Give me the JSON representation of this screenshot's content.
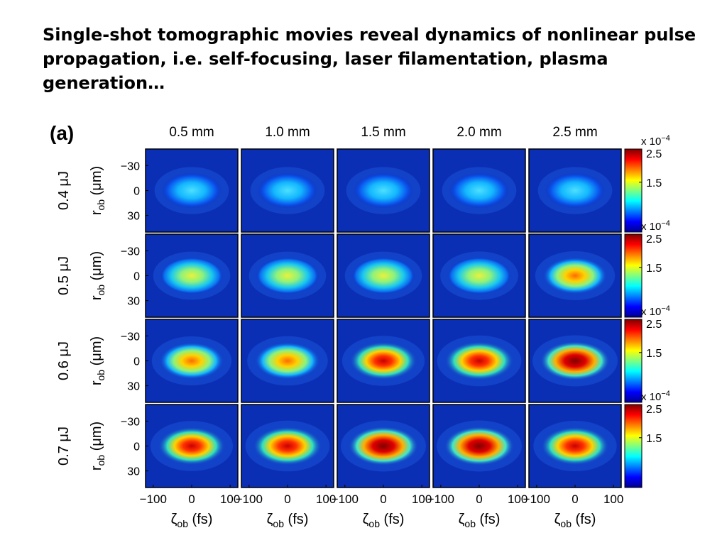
{
  "slide": {
    "title": "Single-shot tomographic movies reveal dynamics of nonlinear pulse propagation, i.e. self-focusing, laser filamentation, plasma generation…"
  },
  "figure": {
    "panel_label": "(a)",
    "columns": [
      "0.5 mm",
      "1.0 mm",
      "1.5 mm",
      "2.0 mm",
      "2.5 mm"
    ],
    "rows": [
      "0.4 μJ",
      "0.5 μJ",
      "0.6 μJ",
      "0.7 μJ"
    ],
    "y_axis_label": {
      "main": "r",
      "sub": "ob",
      "unit": " (μm)"
    },
    "x_axis_label": {
      "main": "ζ",
      "sub": "ob",
      "unit": " (fs)"
    },
    "y_ticks": [
      "−30",
      "0",
      "30"
    ],
    "x_ticks": [
      "−100",
      "0",
      "100"
    ],
    "colorbar": {
      "exponent_base": "x 10",
      "exponent": "−4",
      "ticks": [
        "2.5",
        "1.5"
      ]
    },
    "colormap": "jet"
  },
  "chart_data": {
    "type": "heatmap",
    "columns": [
      "0.5 mm",
      "1.0 mm",
      "1.5 mm",
      "2.0 mm",
      "2.5 mm"
    ],
    "rows": [
      "0.4 μJ",
      "0.5 μJ",
      "0.6 μJ",
      "0.7 μJ"
    ],
    "xlim": [
      -120,
      120
    ],
    "ylim": [
      -50,
      50
    ],
    "y_reversed": true,
    "clim": [
      0,
      0.00025
    ],
    "peak_intensity": [
      [
        0.00013,
        0.00013,
        0.00013,
        0.00013,
        0.00013
      ],
      [
        0.00016,
        0.00016,
        0.00016,
        0.00017,
        0.00019
      ],
      [
        0.00019,
        0.0002,
        0.00022,
        0.00024,
        0.00025
      ],
      [
        0.00022,
        0.00024,
        0.00025,
        0.00025,
        0.00023
      ]
    ]
  }
}
